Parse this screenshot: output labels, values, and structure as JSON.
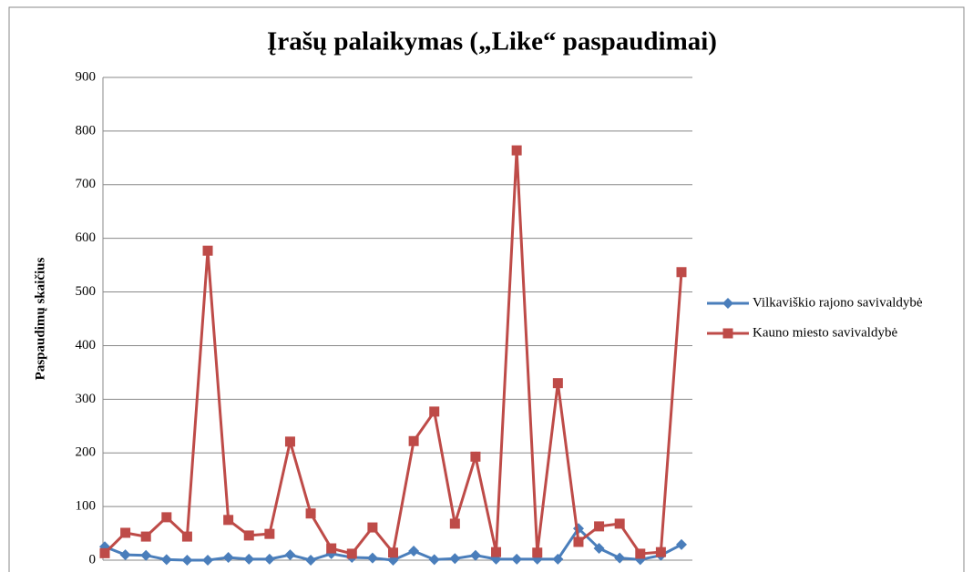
{
  "chart_data": {
    "type": "line",
    "title": "Įrašų palaikymas („Like“ paspaudimai)",
    "y_label": "Paspaudimų skaičius",
    "categories": [
      null,
      null,
      null,
      null,
      null,
      null,
      null,
      null,
      null,
      null,
      null,
      null,
      null,
      null,
      null,
      null,
      null,
      null,
      null,
      null,
      null,
      null,
      null,
      null,
      null,
      null,
      null,
      null,
      null
    ],
    "series": [
      {
        "name": "Vilkaviškio rajono savivaldybė",
        "color": "#4a7ebb",
        "marker": "diamond",
        "values": [
          25,
          10,
          9,
          1,
          0,
          0,
          5,
          2,
          2,
          10,
          0,
          12,
          5,
          4,
          0,
          17,
          1,
          3,
          9,
          2,
          2,
          2,
          2,
          59,
          22,
          4,
          1,
          9,
          29
        ]
      },
      {
        "name": "Kauno miesto savivaldybė",
        "color": "#be4b48",
        "marker": "square",
        "values": [
          13,
          51,
          44,
          80,
          44,
          577,
          75,
          46,
          49,
          221,
          87,
          22,
          12,
          61,
          14,
          222,
          277,
          68,
          193,
          15,
          764,
          14,
          330,
          34,
          63,
          68,
          12,
          15,
          537
        ]
      }
    ],
    "ylim": [
      0,
      900
    ],
    "yticks": [
      0,
      100,
      200,
      300,
      400,
      500,
      600,
      700,
      800,
      900
    ],
    "grid": true,
    "legend": "right"
  }
}
